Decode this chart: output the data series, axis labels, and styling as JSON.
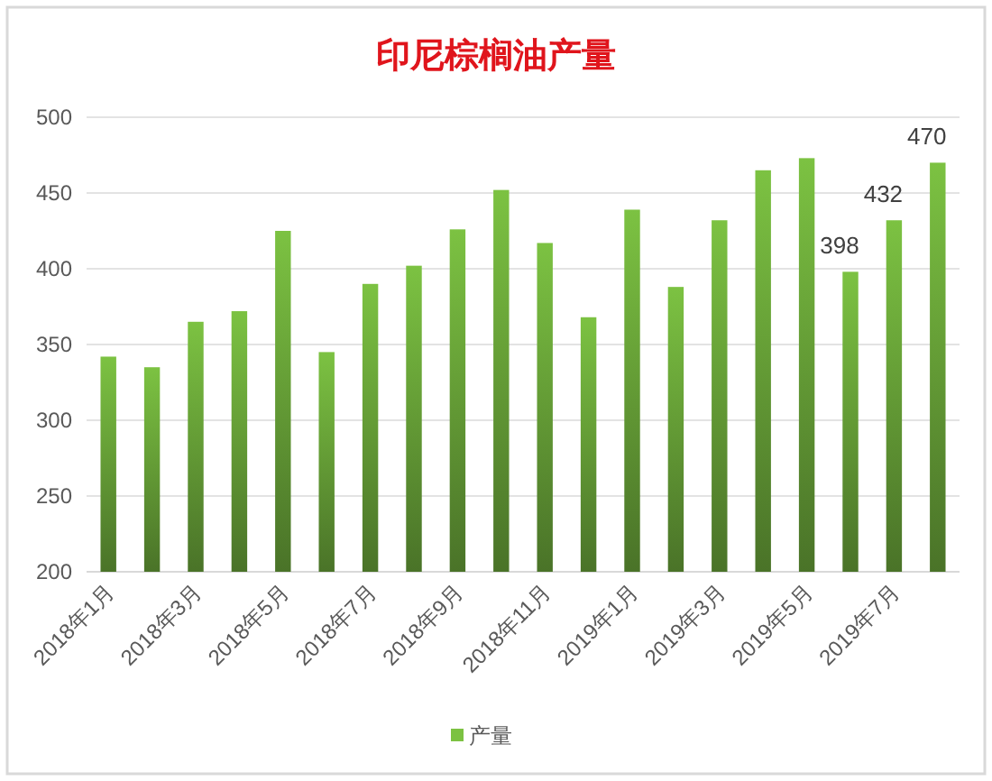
{
  "chart_data": {
    "type": "bar",
    "title": "印尼棕榈油产量",
    "categories": [
      "2018年1月",
      null,
      "2018年3月",
      null,
      "2018年5月",
      null,
      "2018年7月",
      null,
      "2018年9月",
      null,
      "2018年11月",
      null,
      "2019年1月",
      null,
      "2019年3月",
      null,
      "2019年5月",
      null,
      "2019年7月",
      null
    ],
    "series": [
      {
        "name": "产量",
        "color": "#7cc242",
        "values": [
          342,
          335,
          365,
          372,
          425,
          345,
          390,
          402,
          426,
          452,
          417,
          368,
          439,
          388,
          432,
          465,
          473,
          398,
          432,
          470
        ],
        "value_labels": [
          null,
          null,
          null,
          null,
          null,
          null,
          null,
          null,
          null,
          null,
          null,
          null,
          null,
          null,
          null,
          null,
          null,
          "398",
          "432",
          "470"
        ]
      }
    ],
    "ylim": [
      200,
      500
    ],
    "yticks": [
      200,
      250,
      300,
      350,
      400,
      450,
      500
    ],
    "grid": "y",
    "legend": "bottom"
  }
}
